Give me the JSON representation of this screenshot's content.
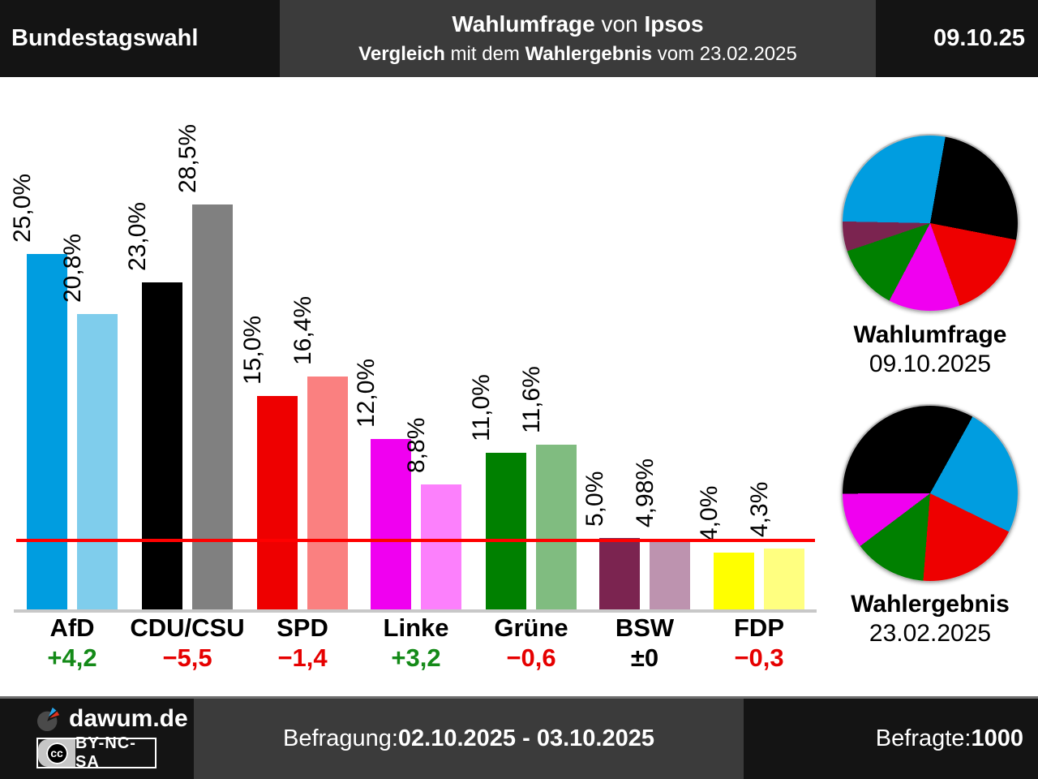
{
  "header": {
    "left_title": "Bundestagswahl",
    "title_parts": [
      {
        "text": "Wahlumfrage",
        "bold": true
      },
      {
        "text": " von ",
        "bold": false
      },
      {
        "text": "Ipsos",
        "bold": true
      }
    ],
    "subtitle_parts": [
      {
        "text": "Vergleich",
        "bold": true
      },
      {
        "text": " mit dem ",
        "bold": false
      },
      {
        "text": "Wahlergebnis",
        "bold": true
      },
      {
        "text": " vom 23.02.2025",
        "bold": false
      }
    ],
    "date": "09.10.25"
  },
  "party_colors": {
    "AfD": {
      "main": "#009de0",
      "light": "#7fcdec"
    },
    "CDU/CSU": {
      "main": "#000000",
      "light": "#808080"
    },
    "SPD": {
      "main": "#ee0000",
      "light": "#fa8080"
    },
    "Linke": {
      "main": "#f000f0",
      "light": "#fc80fc"
    },
    "Grüne": {
      "main": "#008000",
      "light": "#80bc80"
    },
    "BSW": {
      "main": "#7b2450",
      "light": "#bd93af"
    },
    "FDP": {
      "main": "#ffff00",
      "light": "#ffff80"
    }
  },
  "diff_colors": {
    "positive": "#148a18",
    "negative": "#e60000",
    "neutral": "#000000"
  },
  "chart_data": [
    {
      "type": "bar",
      "unit": "%",
      "categories": [
        "AfD",
        "CDU/CSU",
        "SPD",
        "Linke",
        "Grüne",
        "BSW",
        "FDP"
      ],
      "series": [
        {
          "name": "Wahlumfrage 09.10.2025",
          "values": [
            25.0,
            23.0,
            15.0,
            12.0,
            11.0,
            5.0,
            4.0
          ],
          "labels": [
            "25,0%",
            "23,0%",
            "15,0%",
            "12,0%",
            "11,0%",
            "5,0%",
            "4,0%"
          ]
        },
        {
          "name": "Wahlergebnis 23.02.2025",
          "values": [
            20.8,
            28.5,
            16.4,
            8.8,
            11.6,
            4.98,
            4.3
          ],
          "labels": [
            "20,8%",
            "28,5%",
            "16,4%",
            "8,8%",
            "11,6%",
            "4,98%",
            "4,3%"
          ]
        }
      ],
      "diffs": [
        {
          "label": "+4,2",
          "type": "positive"
        },
        {
          "label": "−5,5",
          "type": "negative"
        },
        {
          "label": "−1,4",
          "type": "negative"
        },
        {
          "label": "+3,2",
          "type": "positive"
        },
        {
          "label": "−0,6",
          "type": "negative"
        },
        {
          "label": "±0",
          "type": "neutral"
        },
        {
          "label": "−0,3",
          "type": "negative"
        }
      ],
      "threshold_percent": 5,
      "threshold_color": "#ff0000",
      "axis_color": "#c8c8c8",
      "ylim": [
        0,
        30
      ],
      "grid": false,
      "legend": "none"
    },
    {
      "type": "pie",
      "title": "Wahlumfrage",
      "subtitle": "09.10.2025",
      "start_angle": 10,
      "slices": [
        {
          "party": "CDU/CSU",
          "value": 23.0
        },
        {
          "party": "SPD",
          "value": 15.0
        },
        {
          "party": "Linke",
          "value": 12.0
        },
        {
          "party": "Grüne",
          "value": 11.0
        },
        {
          "party": "BSW",
          "value": 5.0
        },
        {
          "party": "AfD",
          "value": 25.0
        }
      ]
    },
    {
      "type": "pie",
      "title": "Wahlergebnis",
      "subtitle": "23.02.2025",
      "start_angle": 29,
      "slices": [
        {
          "party": "AfD",
          "value": 20.8
        },
        {
          "party": "SPD",
          "value": 16.4
        },
        {
          "party": "Grüne",
          "value": 11.6
        },
        {
          "party": "Linke",
          "value": 8.8
        },
        {
          "party": "CDU/CSU",
          "value": 28.5
        }
      ]
    }
  ],
  "footer": {
    "brand": "dawum.de",
    "cc_label": "cc",
    "license": "BY-NC-SA",
    "survey_parts": [
      {
        "text": "Befragung: ",
        "bold": false
      },
      {
        "text": "02.10.2025 - 03.10.2025",
        "bold": true
      }
    ],
    "respondents_parts": [
      {
        "text": "Befragte: ",
        "bold": false
      },
      {
        "text": "1000",
        "bold": true
      }
    ]
  }
}
